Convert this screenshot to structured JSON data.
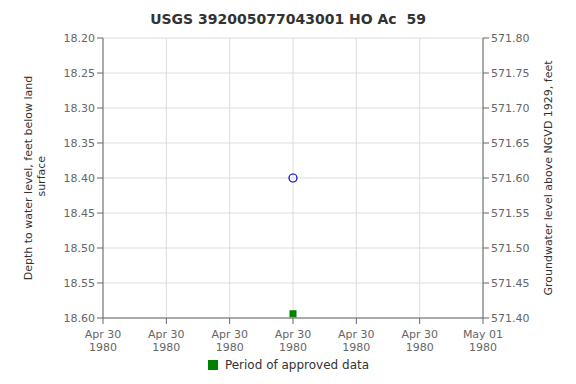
{
  "chart_data": {
    "type": "scatter",
    "title": "USGS 392005077043001 HO Ac  59",
    "y_label": "Depth to water level, feet below land\n surface",
    "y2_label": "Groundwater level above NGVD 1929, feet",
    "categories": [
      "Apr 30\n1980",
      "Apr 30\n1980",
      "Apr 30\n1980",
      "Apr 30\n1980",
      "Apr 30\n1980",
      "Apr 30\n1980",
      "May 01\n1980"
    ],
    "series": [
      {
        "color": "#0000cc",
        "marker": "open_circle",
        "values": [
          null,
          null,
          null,
          18.4,
          null,
          null,
          null
        ]
      },
      {
        "name": "Period of approved data",
        "color": "#008000",
        "marker": "square",
        "values": [
          null,
          null,
          null,
          18.594,
          null,
          null,
          null
        ]
      }
    ],
    "ylim": [
      18.6,
      18.2
    ],
    "yticks": [
      {
        "value": 18.2,
        "label": "18.20"
      },
      18.25,
      {
        "value": 18.3,
        "label": "18.30"
      },
      18.35,
      {
        "value": 18.4,
        "label": "18.40"
      },
      18.45,
      {
        "value": 18.5,
        "label": "18.50"
      },
      18.55,
      {
        "value": 18.6,
        "label": "18.60"
      }
    ],
    "y2lim": [
      571.4,
      571.8
    ],
    "y2ticks": [
      {
        "value": 571.8,
        "label": "571.80"
      },
      571.75,
      {
        "value": 571.7,
        "label": "571.70"
      },
      571.65,
      {
        "value": 571.6,
        "label": "571.60"
      },
      571.55,
      {
        "value": 571.5,
        "label": "571.50"
      },
      571.45,
      {
        "value": 571.4,
        "label": "571.40"
      }
    ],
    "grid": true,
    "legend": "bottom"
  }
}
